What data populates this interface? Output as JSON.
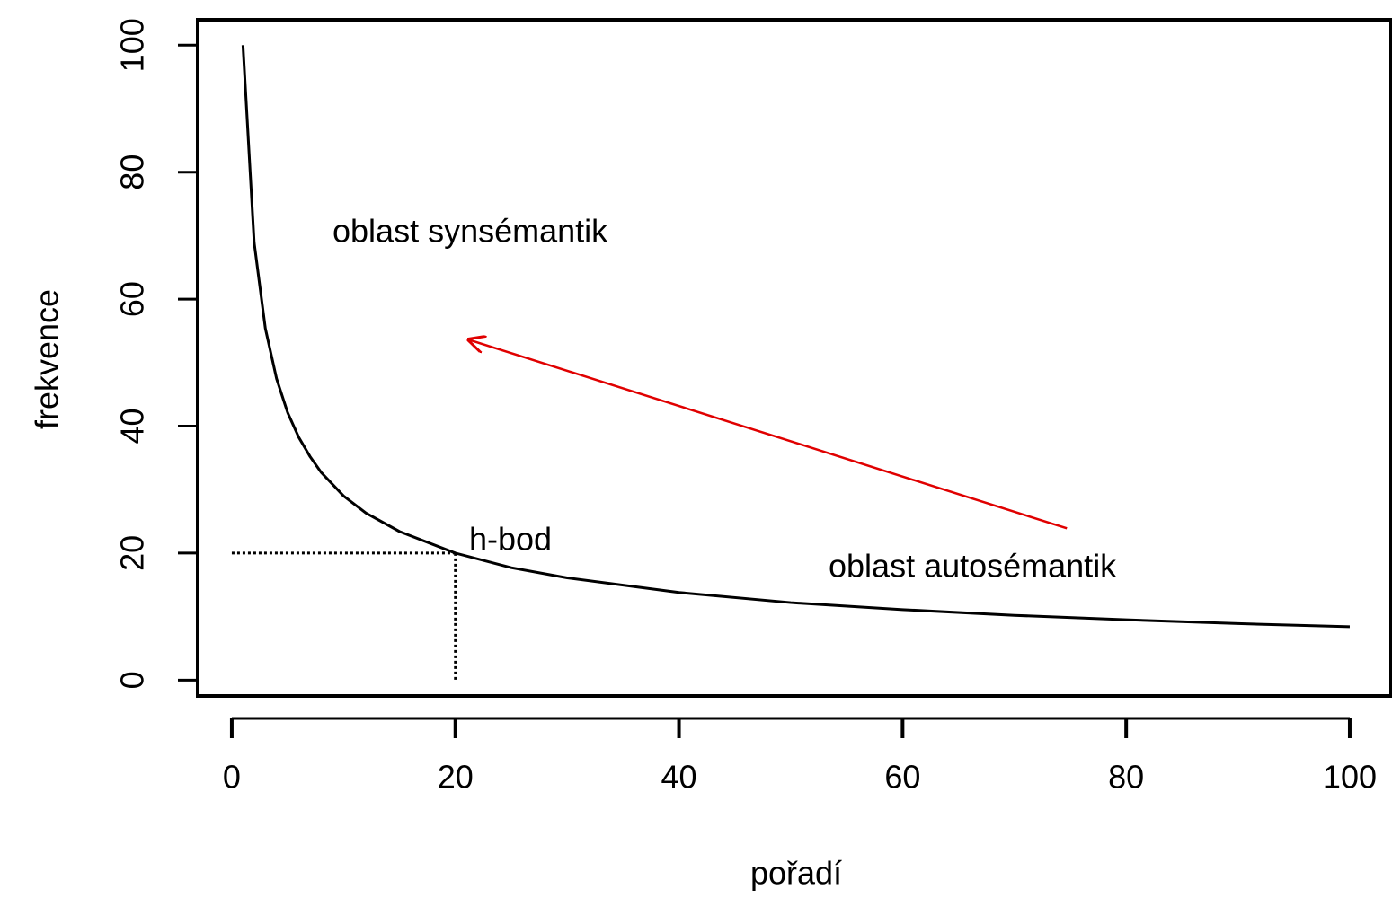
{
  "chart_data": {
    "type": "line",
    "xlabel": "pořadí",
    "ylabel": "frekvence",
    "x": [
      1,
      2,
      3,
      4,
      5,
      6,
      7,
      8,
      10,
      12,
      15,
      20,
      25,
      30,
      40,
      50,
      60,
      70,
      80,
      90,
      100
    ],
    "series": [
      {
        "color": "#000000",
        "values": [
          100,
          68.9,
          55.4,
          47.5,
          42.1,
          38.2,
          35.2,
          32.7,
          29.0,
          26.3,
          23.4,
          20.0,
          17.7,
          16.1,
          13.8,
          12.2,
          11.1,
          10.2,
          9.5,
          8.9,
          8.4
        ]
      }
    ],
    "xlim": [
      -3.05,
      103.7
    ],
    "ylim": [
      -2.5,
      104
    ],
    "xticks": [
      0,
      20,
      40,
      60,
      80,
      100
    ],
    "yticks": [
      0,
      20,
      40,
      60,
      80,
      100
    ],
    "annotations": {
      "synsemantic": "oblast synsémantik",
      "h_point": "h-bod",
      "autosemantic": "oblast autosémantik"
    },
    "h_point": {
      "x": 20,
      "y": 20
    },
    "arrow": {
      "x": [
        74.7,
        21.2
      ],
      "y": [
        23.9,
        53.6
      ],
      "color": "#e00000"
    }
  }
}
